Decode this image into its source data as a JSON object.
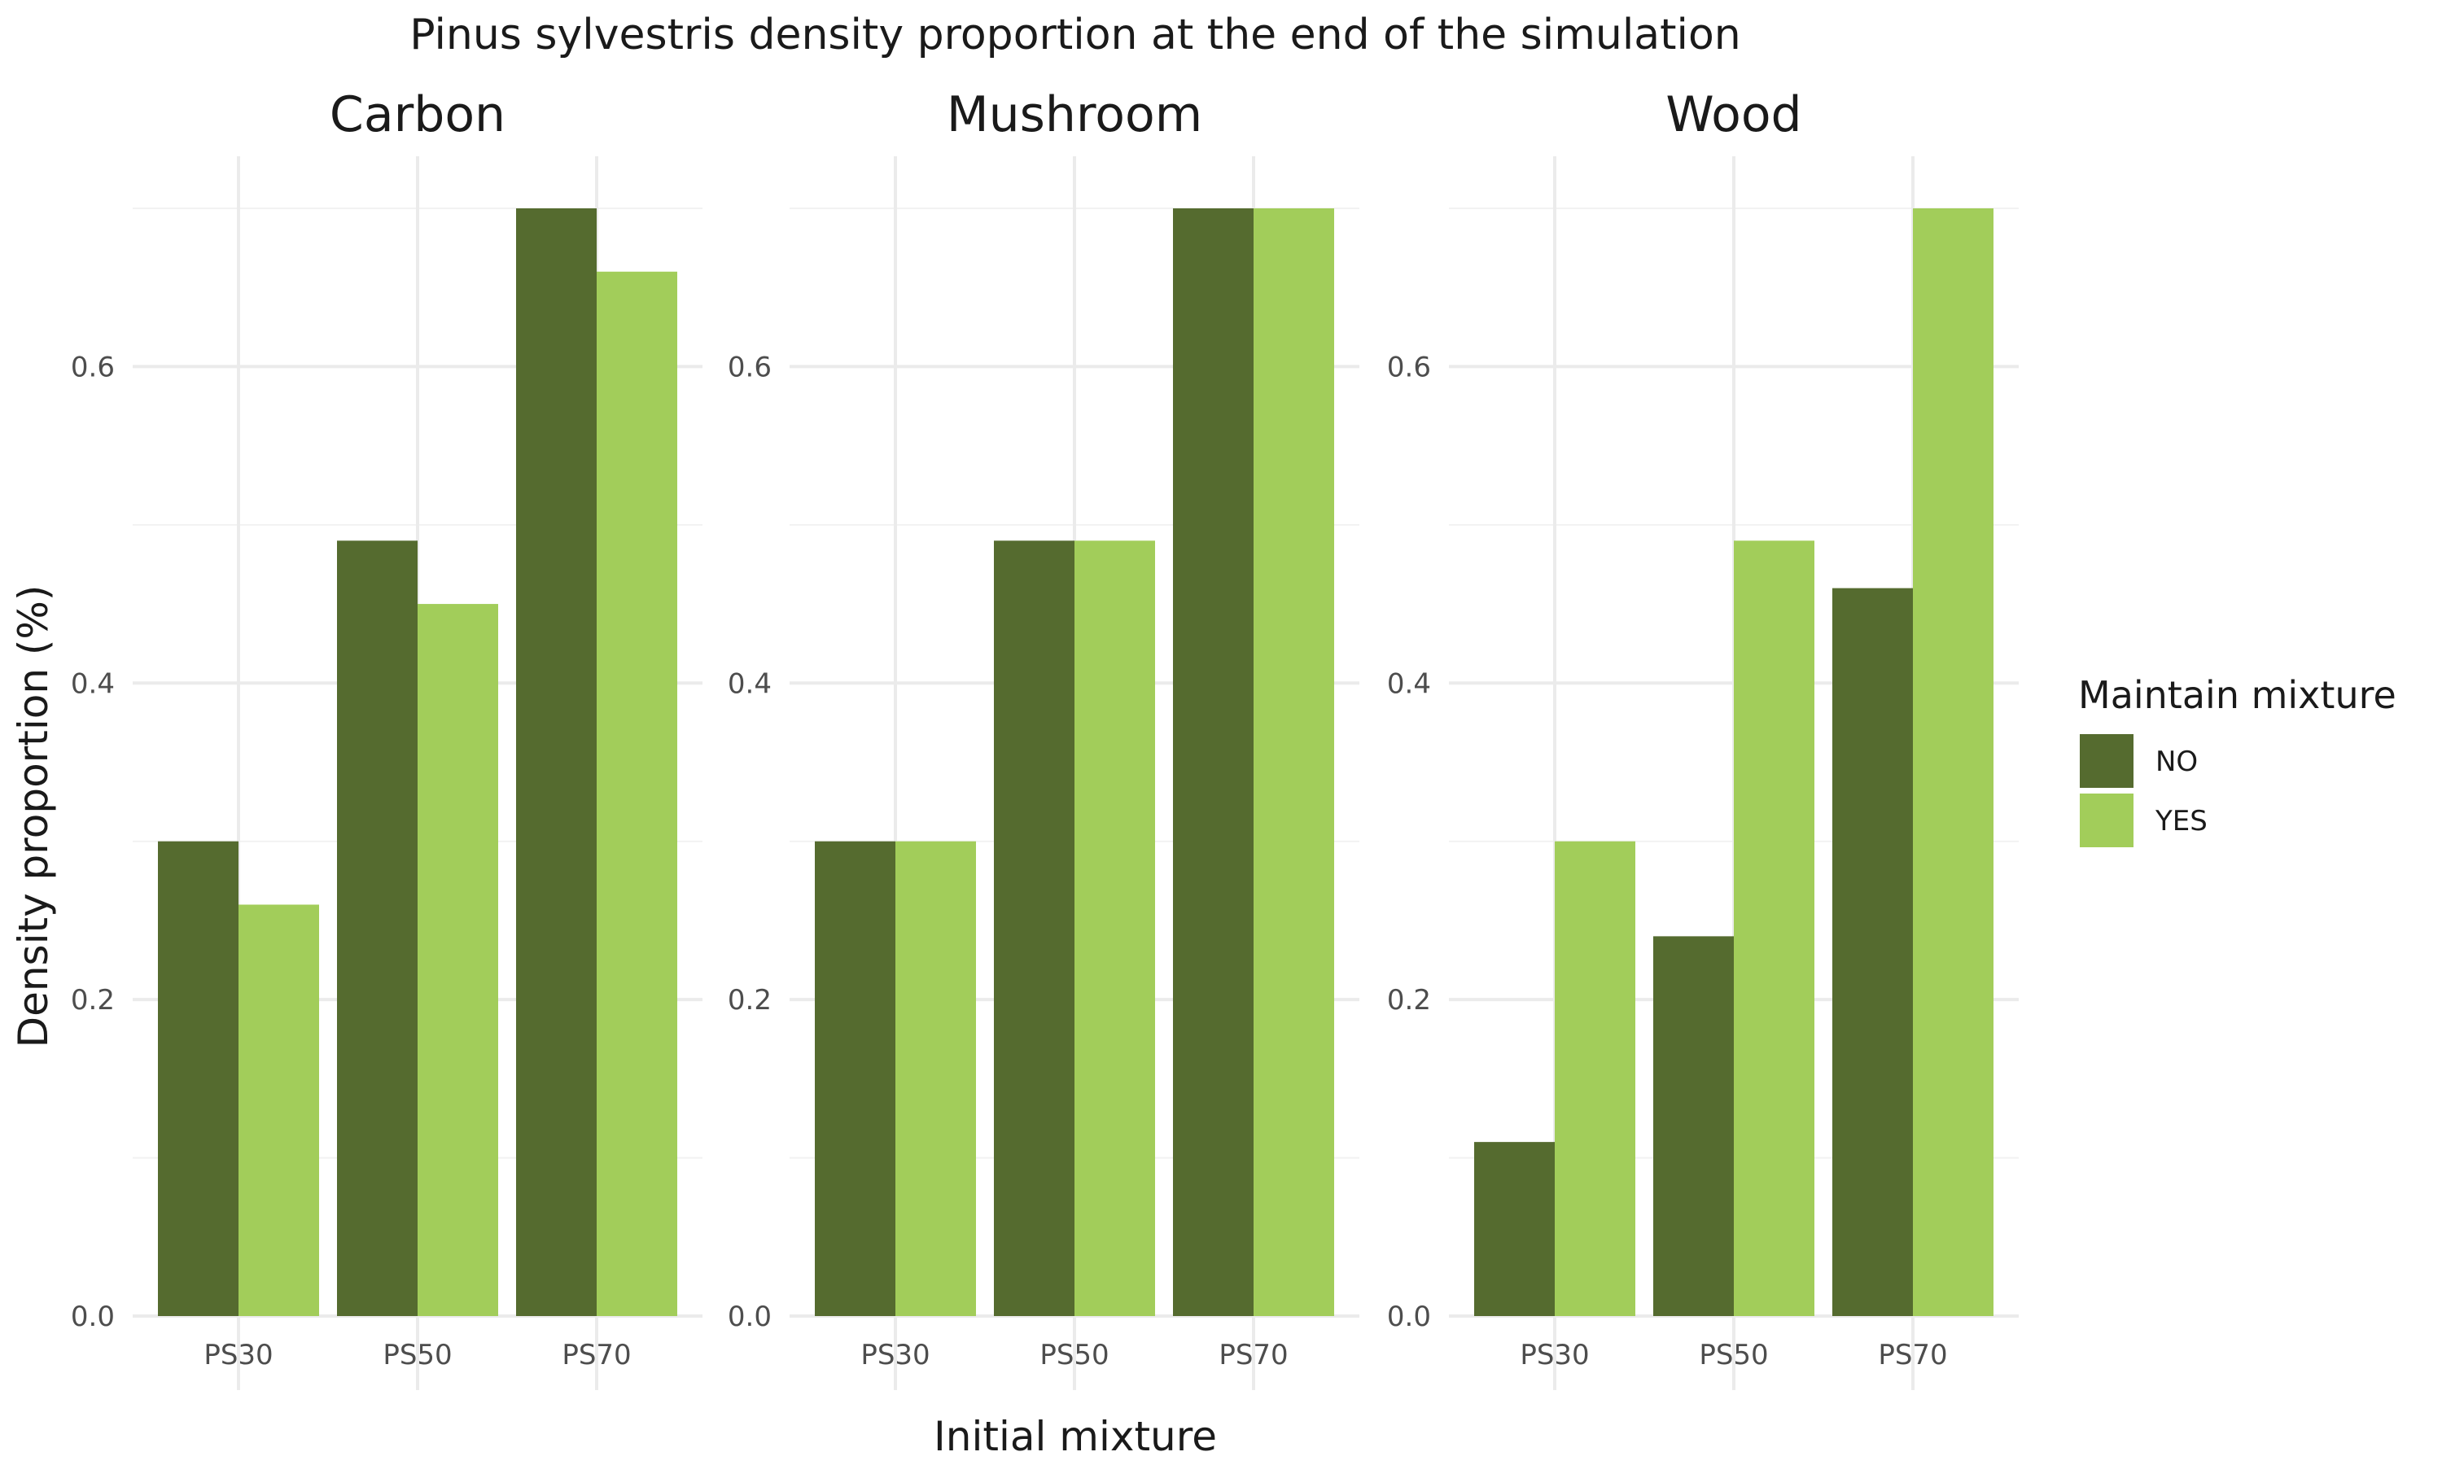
{
  "chart_data": {
    "type": "bar",
    "title": "Pinus sylvestris density proportion at the end of the simulation",
    "xlabel": "Initial mixture",
    "ylabel": "Density proportion (%)",
    "categories": [
      "PS30",
      "PS50",
      "PS70"
    ],
    "ylim": [
      0,
      0.7
    ],
    "yticks": [
      0.0,
      0.2,
      0.4,
      0.6
    ],
    "ytick_labels": [
      "0.0",
      "0.2",
      "0.4",
      "0.6"
    ],
    "grid": true,
    "legend": {
      "title": "Maintain mixture",
      "position": "right",
      "entries": [
        {
          "name": "NO",
          "color": "#556b2f"
        },
        {
          "name": "YES",
          "color": "#a2cd5a"
        }
      ]
    },
    "panels": [
      {
        "title": "Carbon",
        "series": [
          {
            "name": "NO",
            "values": [
              0.3,
              0.49,
              0.7
            ]
          },
          {
            "name": "YES",
            "values": [
              0.26,
              0.45,
              0.66
            ]
          }
        ]
      },
      {
        "title": "Mushroom",
        "series": [
          {
            "name": "NO",
            "values": [
              0.3,
              0.49,
              0.7
            ]
          },
          {
            "name": "YES",
            "values": [
              0.3,
              0.49,
              0.7
            ]
          }
        ]
      },
      {
        "title": "Wood",
        "series": [
          {
            "name": "NO",
            "values": [
              0.11,
              0.24,
              0.46
            ]
          },
          {
            "name": "YES",
            "values": [
              0.3,
              0.49,
              0.7
            ]
          }
        ]
      }
    ]
  }
}
